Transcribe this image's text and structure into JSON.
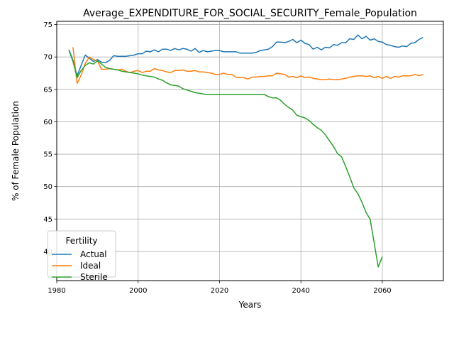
{
  "chart_data": {
    "type": "line",
    "title": "Average_EXPENDITURE_FOR_SOCIAL_SECURITY_Female_Population",
    "xlabel": "Years",
    "ylabel": "% of Female Population",
    "xlim": [
      1980,
      2075
    ],
    "ylim": [
      35.5,
      75.5
    ],
    "xticks": [
      1980,
      2000,
      2020,
      2040,
      2060
    ],
    "yticks": [
      40,
      45,
      50,
      55,
      60,
      65,
      70,
      75
    ],
    "grid": true,
    "legend": {
      "title": "Fertility",
      "placement": "lower-left"
    },
    "series": [
      {
        "name": "Actual",
        "color": "#1f77b4",
        "points": [
          [
            1983,
            71.1
          ],
          [
            1984,
            69.5
          ],
          [
            1985,
            67.1
          ],
          [
            1986,
            68.7
          ],
          [
            1987,
            70.3
          ],
          [
            1988,
            69.8
          ],
          [
            1989,
            69.3
          ],
          [
            1990,
            69.6
          ],
          [
            1991,
            69.2
          ],
          [
            1992,
            69.1
          ],
          [
            1993,
            69.5
          ],
          [
            1994,
            70.2
          ],
          [
            1995,
            70.1
          ],
          [
            1996,
            70.1
          ],
          [
            1997,
            70.1
          ],
          [
            1998,
            70.2
          ],
          [
            1999,
            70.3
          ],
          [
            2000,
            70.5
          ],
          [
            2001,
            70.5
          ],
          [
            2002,
            70.9
          ],
          [
            2003,
            70.8
          ],
          [
            2004,
            71.1
          ],
          [
            2005,
            70.8
          ],
          [
            2006,
            71.2
          ],
          [
            2007,
            71.2
          ],
          [
            2008,
            71.0
          ],
          [
            2009,
            71.3
          ],
          [
            2010,
            71.1
          ],
          [
            2011,
            71.3
          ],
          [
            2012,
            71.2
          ],
          [
            2013,
            70.9
          ],
          [
            2014,
            71.3
          ],
          [
            2015,
            70.7
          ],
          [
            2016,
            71.0
          ],
          [
            2017,
            70.8
          ],
          [
            2018,
            70.9
          ],
          [
            2019,
            71.0
          ],
          [
            2020,
            71.0
          ],
          [
            2021,
            70.8
          ],
          [
            2022,
            70.8
          ],
          [
            2023,
            70.8
          ],
          [
            2024,
            70.8
          ],
          [
            2025,
            70.6
          ],
          [
            2026,
            70.6
          ],
          [
            2027,
            70.6
          ],
          [
            2028,
            70.6
          ],
          [
            2029,
            70.7
          ],
          [
            2030,
            71.0
          ],
          [
            2031,
            71.1
          ],
          [
            2032,
            71.2
          ],
          [
            2033,
            71.6
          ],
          [
            2034,
            72.3
          ],
          [
            2035,
            72.3
          ],
          [
            2036,
            72.2
          ],
          [
            2037,
            72.4
          ],
          [
            2038,
            72.7
          ],
          [
            2039,
            72.2
          ],
          [
            2040,
            72.6
          ],
          [
            2041,
            72.1
          ],
          [
            2042,
            71.9
          ],
          [
            2043,
            71.2
          ],
          [
            2044,
            71.5
          ],
          [
            2045,
            71.1
          ],
          [
            2046,
            71.5
          ],
          [
            2047,
            71.4
          ],
          [
            2048,
            71.9
          ],
          [
            2049,
            71.8
          ],
          [
            2050,
            72.2
          ],
          [
            2051,
            72.2
          ],
          [
            2052,
            72.8
          ],
          [
            2053,
            72.7
          ],
          [
            2054,
            73.4
          ],
          [
            2055,
            72.8
          ],
          [
            2056,
            73.2
          ],
          [
            2057,
            72.6
          ],
          [
            2058,
            72.8
          ],
          [
            2059,
            72.4
          ],
          [
            2060,
            72.3
          ],
          [
            2061,
            71.9
          ],
          [
            2062,
            71.8
          ],
          [
            2063,
            71.6
          ],
          [
            2064,
            71.5
          ],
          [
            2065,
            71.7
          ],
          [
            2066,
            71.6
          ],
          [
            2067,
            72.1
          ],
          [
            2068,
            72.2
          ],
          [
            2069,
            72.7
          ],
          [
            2070,
            73.0
          ]
        ]
      },
      {
        "name": "Ideal",
        "color": "#ff7f0e",
        "points": [
          [
            1984,
            71.5
          ],
          [
            1985,
            65.9
          ],
          [
            1986,
            67.2
          ],
          [
            1987,
            69.0
          ],
          [
            1988,
            70.0
          ],
          [
            1989,
            69.6
          ],
          [
            1990,
            69.4
          ],
          [
            1991,
            68.1
          ],
          [
            1992,
            68.1
          ],
          [
            1993,
            68.2
          ],
          [
            1994,
            68.1
          ],
          [
            1995,
            68.0
          ],
          [
            1996,
            68.1
          ],
          [
            1997,
            67.8
          ],
          [
            1998,
            67.6
          ],
          [
            1999,
            67.8
          ],
          [
            2000,
            67.9
          ],
          [
            2001,
            67.6
          ],
          [
            2002,
            67.8
          ],
          [
            2003,
            67.8
          ],
          [
            2004,
            68.2
          ],
          [
            2005,
            68.0
          ],
          [
            2006,
            67.9
          ],
          [
            2007,
            67.7
          ],
          [
            2008,
            67.6
          ],
          [
            2009,
            67.9
          ],
          [
            2010,
            67.9
          ],
          [
            2011,
            68.0
          ],
          [
            2012,
            67.8
          ],
          [
            2013,
            67.8
          ],
          [
            2014,
            67.9
          ],
          [
            2015,
            67.7
          ],
          [
            2016,
            67.7
          ],
          [
            2017,
            67.6
          ],
          [
            2018,
            67.5
          ],
          [
            2019,
            67.3
          ],
          [
            2020,
            67.3
          ],
          [
            2021,
            67.5
          ],
          [
            2022,
            67.3
          ],
          [
            2023,
            67.3
          ],
          [
            2024,
            66.9
          ],
          [
            2025,
            66.8
          ],
          [
            2026,
            66.8
          ],
          [
            2027,
            66.6
          ],
          [
            2028,
            66.9
          ],
          [
            2029,
            66.9
          ],
          [
            2030,
            67.0
          ],
          [
            2031,
            67.0
          ],
          [
            2032,
            67.1
          ],
          [
            2033,
            67.1
          ],
          [
            2034,
            67.5
          ],
          [
            2035,
            67.4
          ],
          [
            2036,
            67.3
          ],
          [
            2037,
            66.9
          ],
          [
            2038,
            67.0
          ],
          [
            2039,
            66.8
          ],
          [
            2040,
            67.1
          ],
          [
            2041,
            66.8
          ],
          [
            2042,
            66.9
          ],
          [
            2043,
            66.7
          ],
          [
            2044,
            66.6
          ],
          [
            2045,
            66.5
          ],
          [
            2046,
            66.5
          ],
          [
            2047,
            66.6
          ],
          [
            2048,
            66.5
          ],
          [
            2049,
            66.5
          ],
          [
            2050,
            66.6
          ],
          [
            2051,
            66.7
          ],
          [
            2052,
            66.9
          ],
          [
            2053,
            67.0
          ],
          [
            2054,
            67.1
          ],
          [
            2055,
            67.1
          ],
          [
            2056,
            67.0
          ],
          [
            2057,
            67.1
          ],
          [
            2058,
            66.8
          ],
          [
            2059,
            67.0
          ],
          [
            2060,
            66.7
          ],
          [
            2061,
            67.0
          ],
          [
            2062,
            66.7
          ],
          [
            2063,
            67.0
          ],
          [
            2064,
            66.9
          ],
          [
            2065,
            67.1
          ],
          [
            2066,
            67.1
          ],
          [
            2067,
            67.1
          ],
          [
            2068,
            67.3
          ],
          [
            2069,
            67.1
          ],
          [
            2070,
            67.3
          ]
        ]
      },
      {
        "name": "Sterile",
        "color": "#2ca02c",
        "points": [
          [
            1983,
            71.0
          ],
          [
            1984,
            69.3
          ],
          [
            1985,
            66.8
          ],
          [
            1986,
            67.9
          ],
          [
            1987,
            68.7
          ],
          [
            1988,
            69.1
          ],
          [
            1989,
            68.9
          ],
          [
            1990,
            69.4
          ],
          [
            1991,
            68.9
          ],
          [
            1992,
            68.4
          ],
          [
            1993,
            68.2
          ],
          [
            1994,
            68.1
          ],
          [
            1995,
            68.0
          ],
          [
            1996,
            67.8
          ],
          [
            1997,
            67.7
          ],
          [
            1998,
            67.6
          ],
          [
            1999,
            67.5
          ],
          [
            2000,
            67.4
          ],
          [
            2001,
            67.2
          ],
          [
            2002,
            67.1
          ],
          [
            2003,
            67.0
          ],
          [
            2004,
            66.9
          ],
          [
            2005,
            66.6
          ],
          [
            2006,
            66.4
          ],
          [
            2007,
            66.0
          ],
          [
            2008,
            65.7
          ],
          [
            2009,
            65.6
          ],
          [
            2010,
            65.5
          ],
          [
            2011,
            65.1
          ],
          [
            2012,
            64.9
          ],
          [
            2013,
            64.7
          ],
          [
            2014,
            64.5
          ],
          [
            2015,
            64.4
          ],
          [
            2016,
            64.3
          ],
          [
            2017,
            64.2
          ],
          [
            2018,
            64.2
          ],
          [
            2019,
            64.2
          ],
          [
            2020,
            64.2
          ],
          [
            2021,
            64.2
          ],
          [
            2022,
            64.2
          ],
          [
            2023,
            64.2
          ],
          [
            2024,
            64.2
          ],
          [
            2025,
            64.2
          ],
          [
            2026,
            64.2
          ],
          [
            2027,
            64.2
          ],
          [
            2028,
            64.2
          ],
          [
            2029,
            64.2
          ],
          [
            2030,
            64.2
          ],
          [
            2031,
            64.2
          ],
          [
            2032,
            63.9
          ],
          [
            2033,
            63.7
          ],
          [
            2034,
            63.7
          ],
          [
            2035,
            63.3
          ],
          [
            2036,
            62.7
          ],
          [
            2037,
            62.2
          ],
          [
            2038,
            61.8
          ],
          [
            2039,
            61.0
          ],
          [
            2040,
            60.8
          ],
          [
            2041,
            60.6
          ],
          [
            2042,
            60.2
          ],
          [
            2043,
            59.6
          ],
          [
            2044,
            59.1
          ],
          [
            2045,
            58.7
          ],
          [
            2046,
            58.0
          ],
          [
            2047,
            57.1
          ],
          [
            2048,
            56.2
          ],
          [
            2049,
            55.1
          ],
          [
            2050,
            54.6
          ],
          [
            2051,
            53.1
          ],
          [
            2052,
            51.5
          ],
          [
            2053,
            49.8
          ],
          [
            2054,
            48.9
          ],
          [
            2055,
            47.6
          ],
          [
            2056,
            46.0
          ],
          [
            2057,
            45.0
          ],
          [
            2058,
            41.3
          ],
          [
            2059,
            37.6
          ],
          [
            2060,
            39.2
          ]
        ]
      }
    ]
  }
}
